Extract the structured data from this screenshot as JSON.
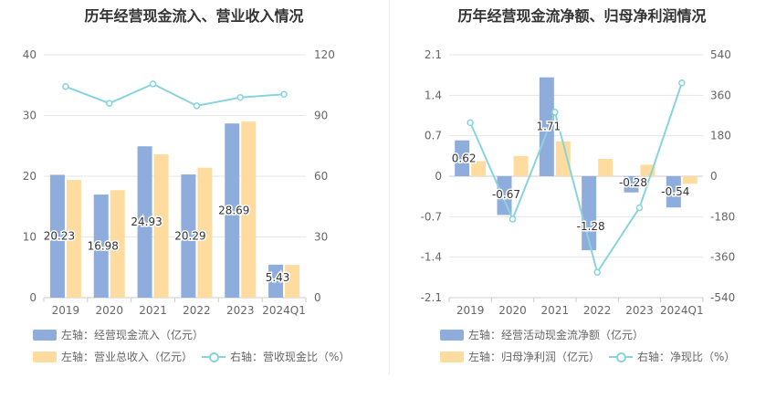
{
  "chart_data": [
    {
      "type": "bar",
      "title": "历年经营现金流入、营业收入情况",
      "categories": [
        "2019",
        "2020",
        "2021",
        "2022",
        "2023",
        "2024Q1"
      ],
      "left_axis": {
        "ylim": [
          0,
          40
        ],
        "ticks": [
          "0",
          "10",
          "20",
          "30",
          "40"
        ]
      },
      "right_axis": {
        "ylim": [
          0,
          120
        ],
        "ticks": [
          "0",
          "30",
          "60",
          "90",
          "120"
        ]
      },
      "series": [
        {
          "name": "左轴：经营现金流入（亿元）",
          "kind": "bar",
          "axis": "left",
          "color": "#8eaddc",
          "values": [
            20.23,
            16.98,
            24.93,
            20.29,
            28.69,
            5.43
          ],
          "labels": [
            "20.23",
            "16.98",
            "24.93",
            "20.29",
            "28.69",
            "5.43"
          ]
        },
        {
          "name": "左轴：营业总收入（亿元）",
          "kind": "bar",
          "axis": "left",
          "color": "#fedc9f",
          "values": [
            19.4,
            17.7,
            23.6,
            21.4,
            29.0,
            5.4
          ]
        },
        {
          "name": "右轴：营收现金比（%）",
          "kind": "line",
          "axis": "right",
          "color": "#88d4dc",
          "values": [
            104.3,
            96.0,
            105.6,
            94.8,
            98.9,
            100.5
          ]
        }
      ],
      "legend_rows": [
        [
          "左轴：经营现金流入（亿元）"
        ],
        [
          "左轴：营业总收入（亿元）",
          "右轴：营收现金比（%）"
        ]
      ]
    },
    {
      "type": "bar",
      "title": "历年经营现金流净额、归母净利润情况",
      "categories": [
        "2019",
        "2020",
        "2021",
        "2022",
        "2023",
        "2024Q1"
      ],
      "left_axis": {
        "ylim": [
          -2.1,
          2.1
        ],
        "ticks": [
          "-2.1",
          "-1.4",
          "-0.7",
          "0",
          "0.7",
          "1.4",
          "2.1"
        ]
      },
      "right_axis": {
        "ylim": [
          -540,
          540
        ],
        "ticks": [
          "-540",
          "-360",
          "-180",
          "0",
          "180",
          "360",
          "540"
        ]
      },
      "series": [
        {
          "name": "左轴：经营活动现金流净额（亿元）",
          "kind": "bar",
          "axis": "left",
          "color": "#8eaddc",
          "values": [
            0.62,
            -0.67,
            1.71,
            -1.28,
            -0.28,
            -0.54
          ],
          "labels": [
            "0.62",
            "-0.67",
            "1.71",
            "-1.28",
            "-0.28",
            "-0.54"
          ]
        },
        {
          "name": "左轴：归母净利润（亿元）",
          "kind": "bar",
          "axis": "left",
          "color": "#fedc9f",
          "values": [
            0.26,
            0.35,
            0.6,
            0.3,
            0.2,
            -0.13
          ]
        },
        {
          "name": "右轴：净现比（%）",
          "kind": "line",
          "axis": "right",
          "color": "#88d4dc",
          "values": [
            238,
            -191,
            285,
            -427,
            -140,
            415
          ]
        }
      ],
      "legend_rows": [
        [
          "左轴：经营活动现金流净额（亿元）"
        ],
        [
          "左轴：归母净利润（亿元）",
          "右轴：净现比（%）"
        ]
      ]
    }
  ]
}
